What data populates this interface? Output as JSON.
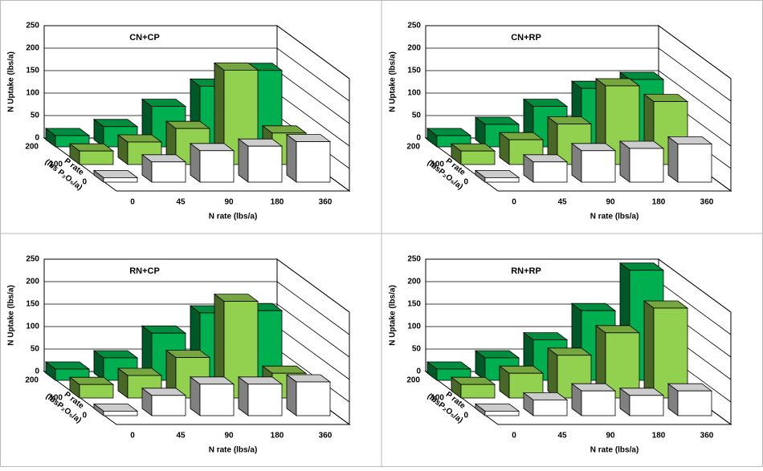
{
  "chart_data": [
    {
      "type": "bar3d",
      "title": "CN+CP",
      "y_label": "N Uptake (lbs/a)",
      "x_label": "N rate (lbs/a)",
      "depth_label": [
        "P rate",
        "(lbs P₂O₅/a)"
      ],
      "categories": [
        "0",
        "45",
        "90",
        "180",
        "360"
      ],
      "series": [
        {
          "name": "0",
          "color": "#ffffff",
          "values": [
            10,
            45,
            70,
            80,
            90
          ]
        },
        {
          "name": "100",
          "color": "#92d050",
          "values": [
            30,
            50,
            80,
            210,
            70
          ]
        },
        {
          "name": "200",
          "color": "#00b050",
          "values": [
            25,
            45,
            90,
            135,
            170
          ]
        }
      ],
      "ylim": [
        0,
        250
      ],
      "yticks": [
        0,
        50,
        100,
        150,
        200,
        250
      ]
    },
    {
      "type": "bar3d",
      "title": "CN+RP",
      "y_label": "N Uptake (lbs/a)",
      "x_label": "N rate (lbs/a)",
      "depth_label": [
        "P rate",
        "(lbsP₂O₅/a)"
      ],
      "categories": [
        "0",
        "45",
        "90",
        "180",
        "360"
      ],
      "series": [
        {
          "name": "0",
          "color": "#ffffff",
          "values": [
            10,
            45,
            70,
            75,
            85
          ]
        },
        {
          "name": "100",
          "color": "#92d050",
          "values": [
            30,
            55,
            90,
            175,
            140
          ]
        },
        {
          "name": "200",
          "color": "#00b050",
          "values": [
            25,
            50,
            90,
            130,
            150
          ]
        }
      ],
      "ylim": [
        0,
        250
      ],
      "yticks": [
        0,
        50,
        100,
        150,
        200,
        250
      ]
    },
    {
      "type": "bar3d",
      "title": "RN+CP",
      "y_label": "N Uptake (lbs/a)",
      "x_label": "N rate (lbs/a)",
      "depth_label": [
        "P rate",
        "(lbsP₂O₅/a)"
      ],
      "categories": [
        "0",
        "45",
        "90",
        "180",
        "360"
      ],
      "series": [
        {
          "name": "0",
          "color": "#ffffff",
          "values": [
            10,
            45,
            70,
            70,
            75
          ]
        },
        {
          "name": "100",
          "color": "#92d050",
          "values": [
            30,
            50,
            90,
            215,
            55
          ]
        },
        {
          "name": "200",
          "color": "#00b050",
          "values": [
            25,
            50,
            105,
            150,
            155
          ]
        }
      ],
      "ylim": [
        0,
        250
      ],
      "yticks": [
        0,
        50,
        100,
        150,
        200,
        250
      ]
    },
    {
      "type": "bar3d",
      "title": "RN+RP",
      "y_label": "N Uptake (lbs/a)",
      "x_label": "N rate (lbs/a)",
      "depth_label": [
        "P rate",
        "(lbsP₂O₅/a)"
      ],
      "categories": [
        "0",
        "45",
        "90",
        "180",
        "360"
      ],
      "series": [
        {
          "name": "0",
          "color": "#ffffff",
          "values": [
            10,
            35,
            55,
            45,
            55
          ]
        },
        {
          "name": "100",
          "color": "#92d050",
          "values": [
            30,
            55,
            95,
            145,
            200
          ]
        },
        {
          "name": "200",
          "color": "#00b050",
          "values": [
            25,
            50,
            90,
            155,
            245
          ]
        }
      ],
      "ylim": [
        0,
        250
      ],
      "yticks": [
        0,
        50,
        100,
        150,
        200,
        250
      ]
    }
  ]
}
